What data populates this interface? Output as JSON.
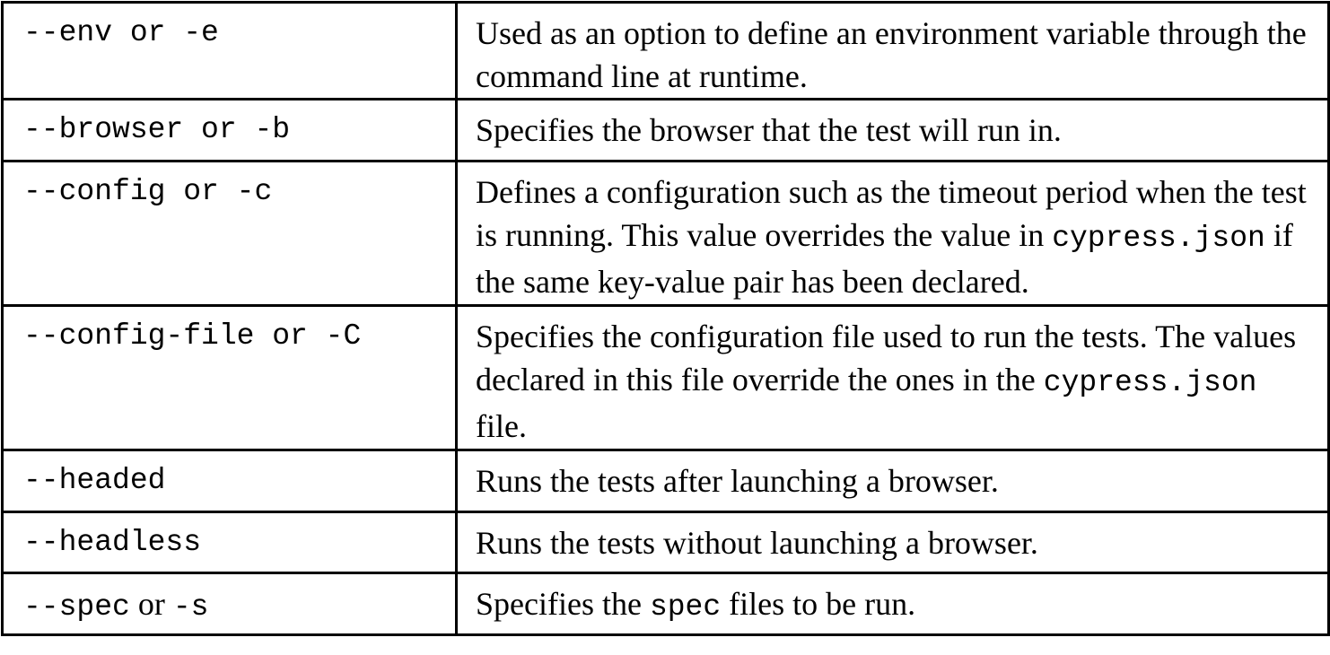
{
  "options_table": {
    "rows": [
      {
        "option": "--env or -e",
        "description": "Used as an option to define an environment variable through the command line at runtime."
      },
      {
        "option": "--browser or -b",
        "description": "Specifies the browser that the test will run in."
      },
      {
        "option": "--config or -c",
        "description_before": "Defines a configuration such as the timeout period when the test is running. This value overrides the value in ",
        "description_code": "cypress.json",
        "description_after": " if the same key-value pair has been declared."
      },
      {
        "option": "--config-file or -C",
        "description_before": "Specifies the configuration file used to run the tests. The values declared in this file override the ones in the ",
        "description_code": "cypress.json",
        "description_after": " file."
      },
      {
        "option": "--headed",
        "description": "Runs the tests after launching a browser."
      },
      {
        "option": "--headless",
        "description": "Runs the tests without launching a browser."
      },
      {
        "option_flag_long": "--spec",
        "option_or": " or ",
        "option_flag_short": "-s",
        "description_before": "Specifies the ",
        "description_code": "spec",
        "description_after": " files to be run."
      }
    ]
  }
}
